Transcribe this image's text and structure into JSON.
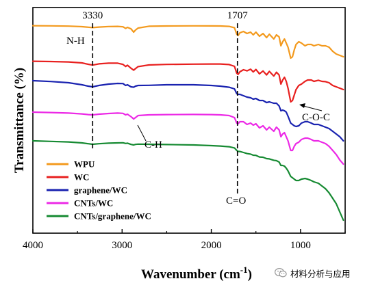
{
  "chart_data": {
    "type": "line",
    "xlabel_main": "Wavenumber (cm",
    "xlabel_sup": "-1",
    "xlabel_end": ")",
    "ylabel": "Transmittance (%)",
    "xlim": [
      4000,
      500
    ],
    "x_reversed": true,
    "y_ticks_shown": false,
    "grid": false,
    "legend_position": "bottom-left",
    "x_ticks": [
      {
        "value": 4000,
        "label": "4000"
      },
      {
        "value": 3000,
        "label": "3000"
      },
      {
        "value": 2000,
        "label": "2000"
      },
      {
        "value": 1000,
        "label": "1000"
      }
    ],
    "peak_markers": [
      {
        "x": 3330,
        "label": "3330"
      },
      {
        "x": 1707,
        "label": "1707"
      }
    ],
    "annotations": [
      {
        "text": "N-H",
        "x": 3330
      },
      {
        "text": "C-H",
        "x": 2850
      },
      {
        "text": "C=O",
        "x": 1707
      },
      {
        "text": "C-O-C",
        "x": 1080
      }
    ],
    "series": [
      {
        "name": "WPU",
        "color": "#f39a1e",
        "points": [
          [
            4000,
            0.6
          ],
          [
            3800,
            0.8
          ],
          [
            3600,
            1.2
          ],
          [
            3450,
            2.0
          ],
          [
            3380,
            2.8
          ],
          [
            3330,
            3.4
          ],
          [
            3260,
            2.6
          ],
          [
            3150,
            1.8
          ],
          [
            3050,
            1.6
          ],
          [
            2990,
            2.2
          ],
          [
            2960,
            4.6
          ],
          [
            2940,
            3.0
          ],
          [
            2900,
            5.2
          ],
          [
            2870,
            10.0
          ],
          [
            2850,
            7.0
          ],
          [
            2820,
            4.0
          ],
          [
            2700,
            1.4
          ],
          [
            2500,
            1.0
          ],
          [
            2200,
            0.8
          ],
          [
            2000,
            0.9
          ],
          [
            1900,
            1.0
          ],
          [
            1800,
            1.6
          ],
          [
            1740,
            3.6
          ],
          [
            1715,
            13.0
          ],
          [
            1700,
            15.0
          ],
          [
            1680,
            11.0
          ],
          [
            1640,
            9.0
          ],
          [
            1600,
            12.0
          ],
          [
            1560,
            10.0
          ],
          [
            1530,
            14.0
          ],
          [
            1500,
            10.0
          ],
          [
            1460,
            16.0
          ],
          [
            1420,
            12.0
          ],
          [
            1380,
            18.0
          ],
          [
            1350,
            13.0
          ],
          [
            1300,
            20.0
          ],
          [
            1270,
            14.0
          ],
          [
            1240,
            17.0
          ],
          [
            1220,
            30.0
          ],
          [
            1200,
            24.0
          ],
          [
            1180,
            20.0
          ],
          [
            1160,
            26.0
          ],
          [
            1140,
            32.0
          ],
          [
            1110,
            48.0
          ],
          [
            1090,
            46.0
          ],
          [
            1070,
            36.0
          ],
          [
            1050,
            28.0
          ],
          [
            1020,
            24.0
          ],
          [
            990,
            26.0
          ],
          [
            950,
            30.0
          ],
          [
            920,
            28.0
          ],
          [
            880,
            28.0
          ],
          [
            850,
            30.0
          ],
          [
            800,
            28.0
          ],
          [
            760,
            30.0
          ],
          [
            720,
            30.0
          ],
          [
            680,
            32.0
          ],
          [
            640,
            38.0
          ],
          [
            600,
            42.0
          ],
          [
            560,
            44.0
          ],
          [
            520,
            46.0
          ]
        ]
      },
      {
        "name": "WC",
        "color": "#e8201f",
        "points": [
          [
            4000,
            0.6
          ],
          [
            3800,
            1.0
          ],
          [
            3600,
            1.6
          ],
          [
            3450,
            3.0
          ],
          [
            3380,
            5.0
          ],
          [
            3330,
            6.2
          ],
          [
            3260,
            4.4
          ],
          [
            3150,
            3.4
          ],
          [
            3050,
            3.4
          ],
          [
            2990,
            5.2
          ],
          [
            2960,
            8.2
          ],
          [
            2940,
            6.4
          ],
          [
            2900,
            10.8
          ],
          [
            2870,
            13.6
          ],
          [
            2850,
            11.4
          ],
          [
            2820,
            8.4
          ],
          [
            2700,
            6.0
          ],
          [
            2500,
            5.2
          ],
          [
            2200,
            4.8
          ],
          [
            2000,
            4.6
          ],
          [
            1900,
            4.6
          ],
          [
            1800,
            5.4
          ],
          [
            1740,
            8.0
          ],
          [
            1715,
            18.0
          ],
          [
            1700,
            19.8
          ],
          [
            1680,
            16.0
          ],
          [
            1640,
            13.0
          ],
          [
            1600,
            14.6
          ],
          [
            1560,
            12.2
          ],
          [
            1530,
            16.2
          ],
          [
            1500,
            12.6
          ],
          [
            1460,
            19.0
          ],
          [
            1420,
            14.8
          ],
          [
            1380,
            20.6
          ],
          [
            1350,
            15.4
          ],
          [
            1300,
            22.2
          ],
          [
            1270,
            16.6
          ],
          [
            1240,
            20.8
          ],
          [
            1220,
            34.0
          ],
          [
            1200,
            28.0
          ],
          [
            1180,
            24.0
          ],
          [
            1160,
            30.0
          ],
          [
            1140,
            40.0
          ],
          [
            1110,
            60.0
          ],
          [
            1090,
            58.0
          ],
          [
            1070,
            50.0
          ],
          [
            1050,
            42.0
          ],
          [
            1020,
            36.0
          ],
          [
            990,
            34.0
          ],
          [
            950,
            30.0
          ],
          [
            920,
            28.0
          ],
          [
            880,
            28.0
          ],
          [
            850,
            30.0
          ],
          [
            800,
            28.4
          ],
          [
            760,
            30.0
          ],
          [
            720,
            30.4
          ],
          [
            680,
            32.0
          ],
          [
            640,
            36.0
          ],
          [
            600,
            38.0
          ],
          [
            560,
            40.0
          ],
          [
            520,
            42.0
          ]
        ]
      },
      {
        "name": "graphene/WC",
        "color": "#1a23b0",
        "points": [
          [
            4000,
            0.0
          ],
          [
            3800,
            1.2
          ],
          [
            3600,
            3.0
          ],
          [
            3450,
            6.0
          ],
          [
            3380,
            8.0
          ],
          [
            3330,
            9.0
          ],
          [
            3260,
            7.0
          ],
          [
            3150,
            5.0
          ],
          [
            3050,
            4.0
          ],
          [
            2990,
            4.2
          ],
          [
            2960,
            7.0
          ],
          [
            2940,
            6.0
          ],
          [
            2900,
            9.0
          ],
          [
            2870,
            9.6
          ],
          [
            2850,
            8.0
          ],
          [
            2820,
            7.0
          ],
          [
            2700,
            6.8
          ],
          [
            2500,
            6.0
          ],
          [
            2200,
            6.0
          ],
          [
            2000,
            7.0
          ],
          [
            1900,
            8.0
          ],
          [
            1800,
            9.6
          ],
          [
            1740,
            12.0
          ],
          [
            1715,
            19.0
          ],
          [
            1700,
            20.0
          ],
          [
            1680,
            20.0
          ],
          [
            1640,
            22.0
          ],
          [
            1600,
            24.0
          ],
          [
            1560,
            25.0
          ],
          [
            1530,
            27.0
          ],
          [
            1500,
            26.0
          ],
          [
            1460,
            29.0
          ],
          [
            1420,
            29.0
          ],
          [
            1380,
            32.0
          ],
          [
            1350,
            31.0
          ],
          [
            1300,
            33.0
          ],
          [
            1270,
            33.0
          ],
          [
            1240,
            37.0
          ],
          [
            1220,
            44.0
          ],
          [
            1200,
            43.0
          ],
          [
            1180,
            44.0
          ],
          [
            1160,
            46.0
          ],
          [
            1140,
            52.0
          ],
          [
            1110,
            62.0
          ],
          [
            1090,
            64.0
          ],
          [
            1070,
            66.0
          ],
          [
            1050,
            67.0
          ],
          [
            1020,
            66.0
          ],
          [
            990,
            62.0
          ],
          [
            950,
            60.0
          ],
          [
            920,
            60.0
          ],
          [
            880,
            62.0
          ],
          [
            850,
            64.0
          ],
          [
            800,
            64.0
          ],
          [
            760,
            66.0
          ],
          [
            720,
            68.0
          ],
          [
            680,
            70.0
          ],
          [
            640,
            74.0
          ],
          [
            600,
            78.0
          ],
          [
            560,
            82.0
          ],
          [
            520,
            88.0
          ]
        ]
      },
      {
        "name": "CNTs/WC",
        "color": "#ec29e6",
        "points": [
          [
            4000,
            0.0
          ],
          [
            3800,
            0.6
          ],
          [
            3600,
            1.4
          ],
          [
            3450,
            2.6
          ],
          [
            3380,
            3.6
          ],
          [
            3330,
            4.0
          ],
          [
            3260,
            3.0
          ],
          [
            3150,
            2.0
          ],
          [
            3050,
            1.4
          ],
          [
            2990,
            1.8
          ],
          [
            2960,
            4.0
          ],
          [
            2940,
            3.0
          ],
          [
            2900,
            6.6
          ],
          [
            2870,
            10.0
          ],
          [
            2850,
            8.0
          ],
          [
            2820,
            5.0
          ],
          [
            2700,
            4.0
          ],
          [
            2500,
            3.6
          ],
          [
            2200,
            3.4
          ],
          [
            2000,
            3.6
          ],
          [
            1900,
            4.0
          ],
          [
            1800,
            5.0
          ],
          [
            1740,
            8.0
          ],
          [
            1715,
            16.0
          ],
          [
            1700,
            17.0
          ],
          [
            1680,
            14.0
          ],
          [
            1640,
            14.0
          ],
          [
            1600,
            18.0
          ],
          [
            1560,
            16.0
          ],
          [
            1530,
            19.0
          ],
          [
            1500,
            17.0
          ],
          [
            1460,
            23.0
          ],
          [
            1420,
            20.0
          ],
          [
            1380,
            26.0
          ],
          [
            1350,
            22.0
          ],
          [
            1300,
            28.0
          ],
          [
            1270,
            22.0
          ],
          [
            1240,
            26.0
          ],
          [
            1220,
            36.0
          ],
          [
            1200,
            32.0
          ],
          [
            1180,
            30.0
          ],
          [
            1160,
            36.0
          ],
          [
            1140,
            42.0
          ],
          [
            1110,
            56.0
          ],
          [
            1090,
            56.0
          ],
          [
            1070,
            50.0
          ],
          [
            1050,
            46.0
          ],
          [
            1020,
            44.0
          ],
          [
            990,
            40.0
          ],
          [
            950,
            38.0
          ],
          [
            920,
            38.0
          ],
          [
            880,
            40.0
          ],
          [
            850,
            42.0
          ],
          [
            800,
            42.0
          ],
          [
            760,
            44.0
          ],
          [
            720,
            46.0
          ],
          [
            680,
            50.0
          ],
          [
            640,
            56.0
          ],
          [
            600,
            62.0
          ],
          [
            560,
            70.0
          ],
          [
            520,
            76.0
          ]
        ]
      },
      {
        "name": "CNTs/graphene/WC",
        "color": "#168a32",
        "points": [
          [
            4000,
            0.0
          ],
          [
            3800,
            0.8
          ],
          [
            3600,
            1.6
          ],
          [
            3450,
            3.0
          ],
          [
            3380,
            4.2
          ],
          [
            3330,
            5.0
          ],
          [
            3260,
            4.2
          ],
          [
            3150,
            3.4
          ],
          [
            3050,
            3.0
          ],
          [
            2990,
            2.8
          ],
          [
            2960,
            3.8
          ],
          [
            2940,
            3.4
          ],
          [
            2900,
            5.2
          ],
          [
            2870,
            6.0
          ],
          [
            2850,
            5.2
          ],
          [
            2820,
            4.8
          ],
          [
            2700,
            5.0
          ],
          [
            2500,
            5.4
          ],
          [
            2200,
            6.0
          ],
          [
            2000,
            7.0
          ],
          [
            1900,
            7.6
          ],
          [
            1800,
            8.6
          ],
          [
            1740,
            10.4
          ],
          [
            1715,
            14.0
          ],
          [
            1700,
            15.4
          ],
          [
            1680,
            15.6
          ],
          [
            1640,
            17.0
          ],
          [
            1600,
            18.6
          ],
          [
            1560,
            19.4
          ],
          [
            1530,
            21.0
          ],
          [
            1500,
            21.2
          ],
          [
            1460,
            23.6
          ],
          [
            1420,
            24.0
          ],
          [
            1380,
            26.0
          ],
          [
            1350,
            26.4
          ],
          [
            1300,
            28.4
          ],
          [
            1270,
            29.0
          ],
          [
            1240,
            31.0
          ],
          [
            1220,
            36.0
          ],
          [
            1200,
            36.0
          ],
          [
            1180,
            37.0
          ],
          [
            1160,
            40.0
          ],
          [
            1140,
            44.0
          ],
          [
            1110,
            52.0
          ],
          [
            1090,
            54.0
          ],
          [
            1070,
            56.0
          ],
          [
            1050,
            58.0
          ],
          [
            1020,
            58.0
          ],
          [
            990,
            56.0
          ],
          [
            950,
            55.0
          ],
          [
            920,
            56.0
          ],
          [
            880,
            58.0
          ],
          [
            850,
            60.0
          ],
          [
            800,
            62.0
          ],
          [
            760,
            66.0
          ],
          [
            720,
            70.0
          ],
          [
            680,
            76.0
          ],
          [
            640,
            84.0
          ],
          [
            600,
            92.0
          ],
          [
            560,
            104.0
          ],
          [
            520,
            116.0
          ]
        ]
      }
    ]
  },
  "watermark": {
    "text": "材料分析与应用",
    "icon": "wechat-icon"
  }
}
